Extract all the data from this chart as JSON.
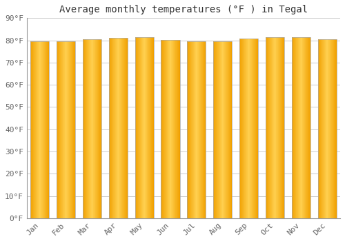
{
  "title": "Average monthly temperatures (°F ) in Tegal",
  "months": [
    "Jan",
    "Feb",
    "Mar",
    "Apr",
    "May",
    "Jun",
    "Jul",
    "Aug",
    "Sep",
    "Oct",
    "Nov",
    "Dec"
  ],
  "values": [
    79.5,
    79.7,
    80.6,
    81.1,
    81.5,
    80.3,
    79.5,
    79.5,
    80.8,
    81.3,
    81.3,
    80.6
  ],
  "ylim": [
    0,
    90
  ],
  "yticks": [
    0,
    10,
    20,
    30,
    40,
    50,
    60,
    70,
    80,
    90
  ],
  "ytick_labels": [
    "0°F",
    "10°F",
    "20°F",
    "30°F",
    "40°F",
    "50°F",
    "60°F",
    "70°F",
    "80°F",
    "90°F"
  ],
  "bar_color_center": "#FFD050",
  "bar_color_edge": "#F0A000",
  "background_color": "#FFFFFF",
  "plot_bg_color": "#FFFFFF",
  "grid_color": "#CCCCCC",
  "title_fontsize": 10,
  "tick_fontsize": 8,
  "title_color": "#333333",
  "tick_color": "#666666",
  "bar_width": 0.72,
  "spine_color": "#999999"
}
